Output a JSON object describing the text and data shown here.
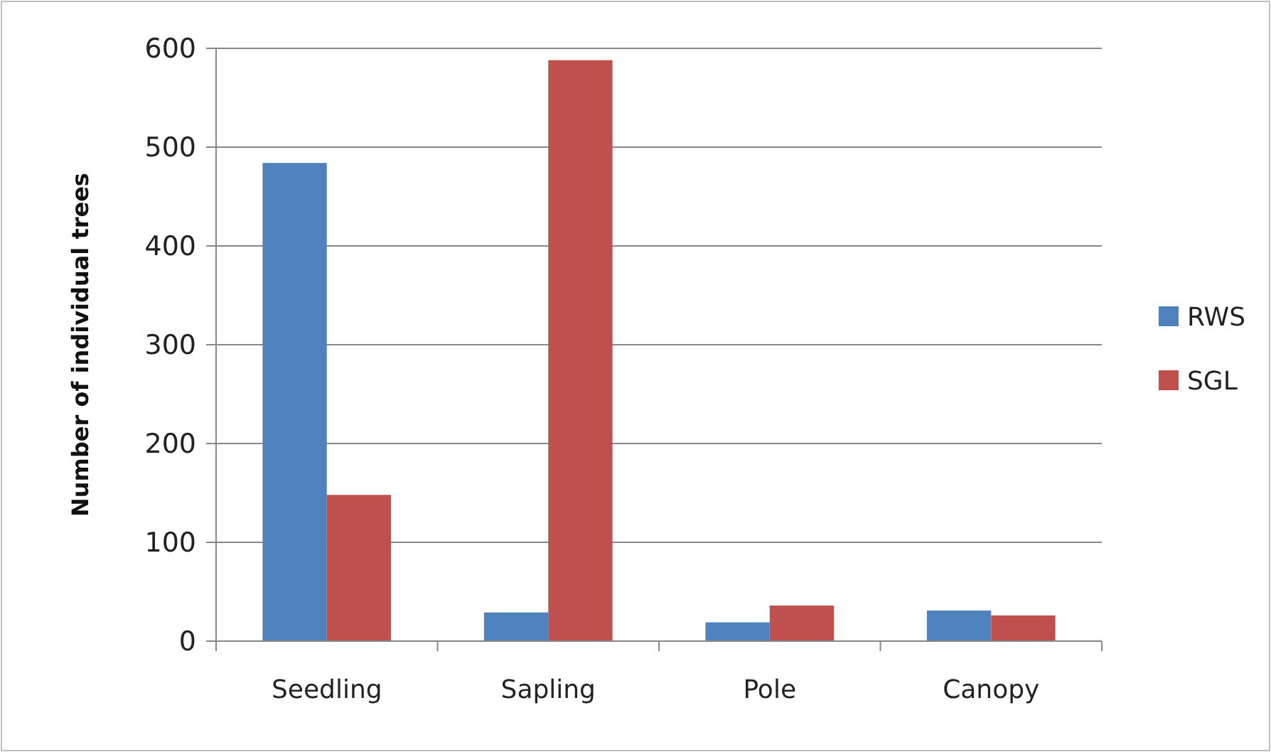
{
  "chart_data": {
    "type": "bar",
    "ylabel": "Number of individual trees",
    "categories": [
      "Seedling",
      "Sapling",
      "Pole",
      "Canopy"
    ],
    "series": [
      {
        "name": "RWS",
        "color": "#4f81bd",
        "values": [
          484,
          29,
          19,
          31
        ]
      },
      {
        "name": "SGL",
        "color": "#c0504d",
        "values": [
          148,
          588,
          36,
          26
        ]
      }
    ],
    "ylim": [
      0,
      600
    ],
    "yticks": [
      0,
      100,
      200,
      300,
      400,
      500,
      600
    ],
    "grid": "y",
    "legend": "right"
  }
}
